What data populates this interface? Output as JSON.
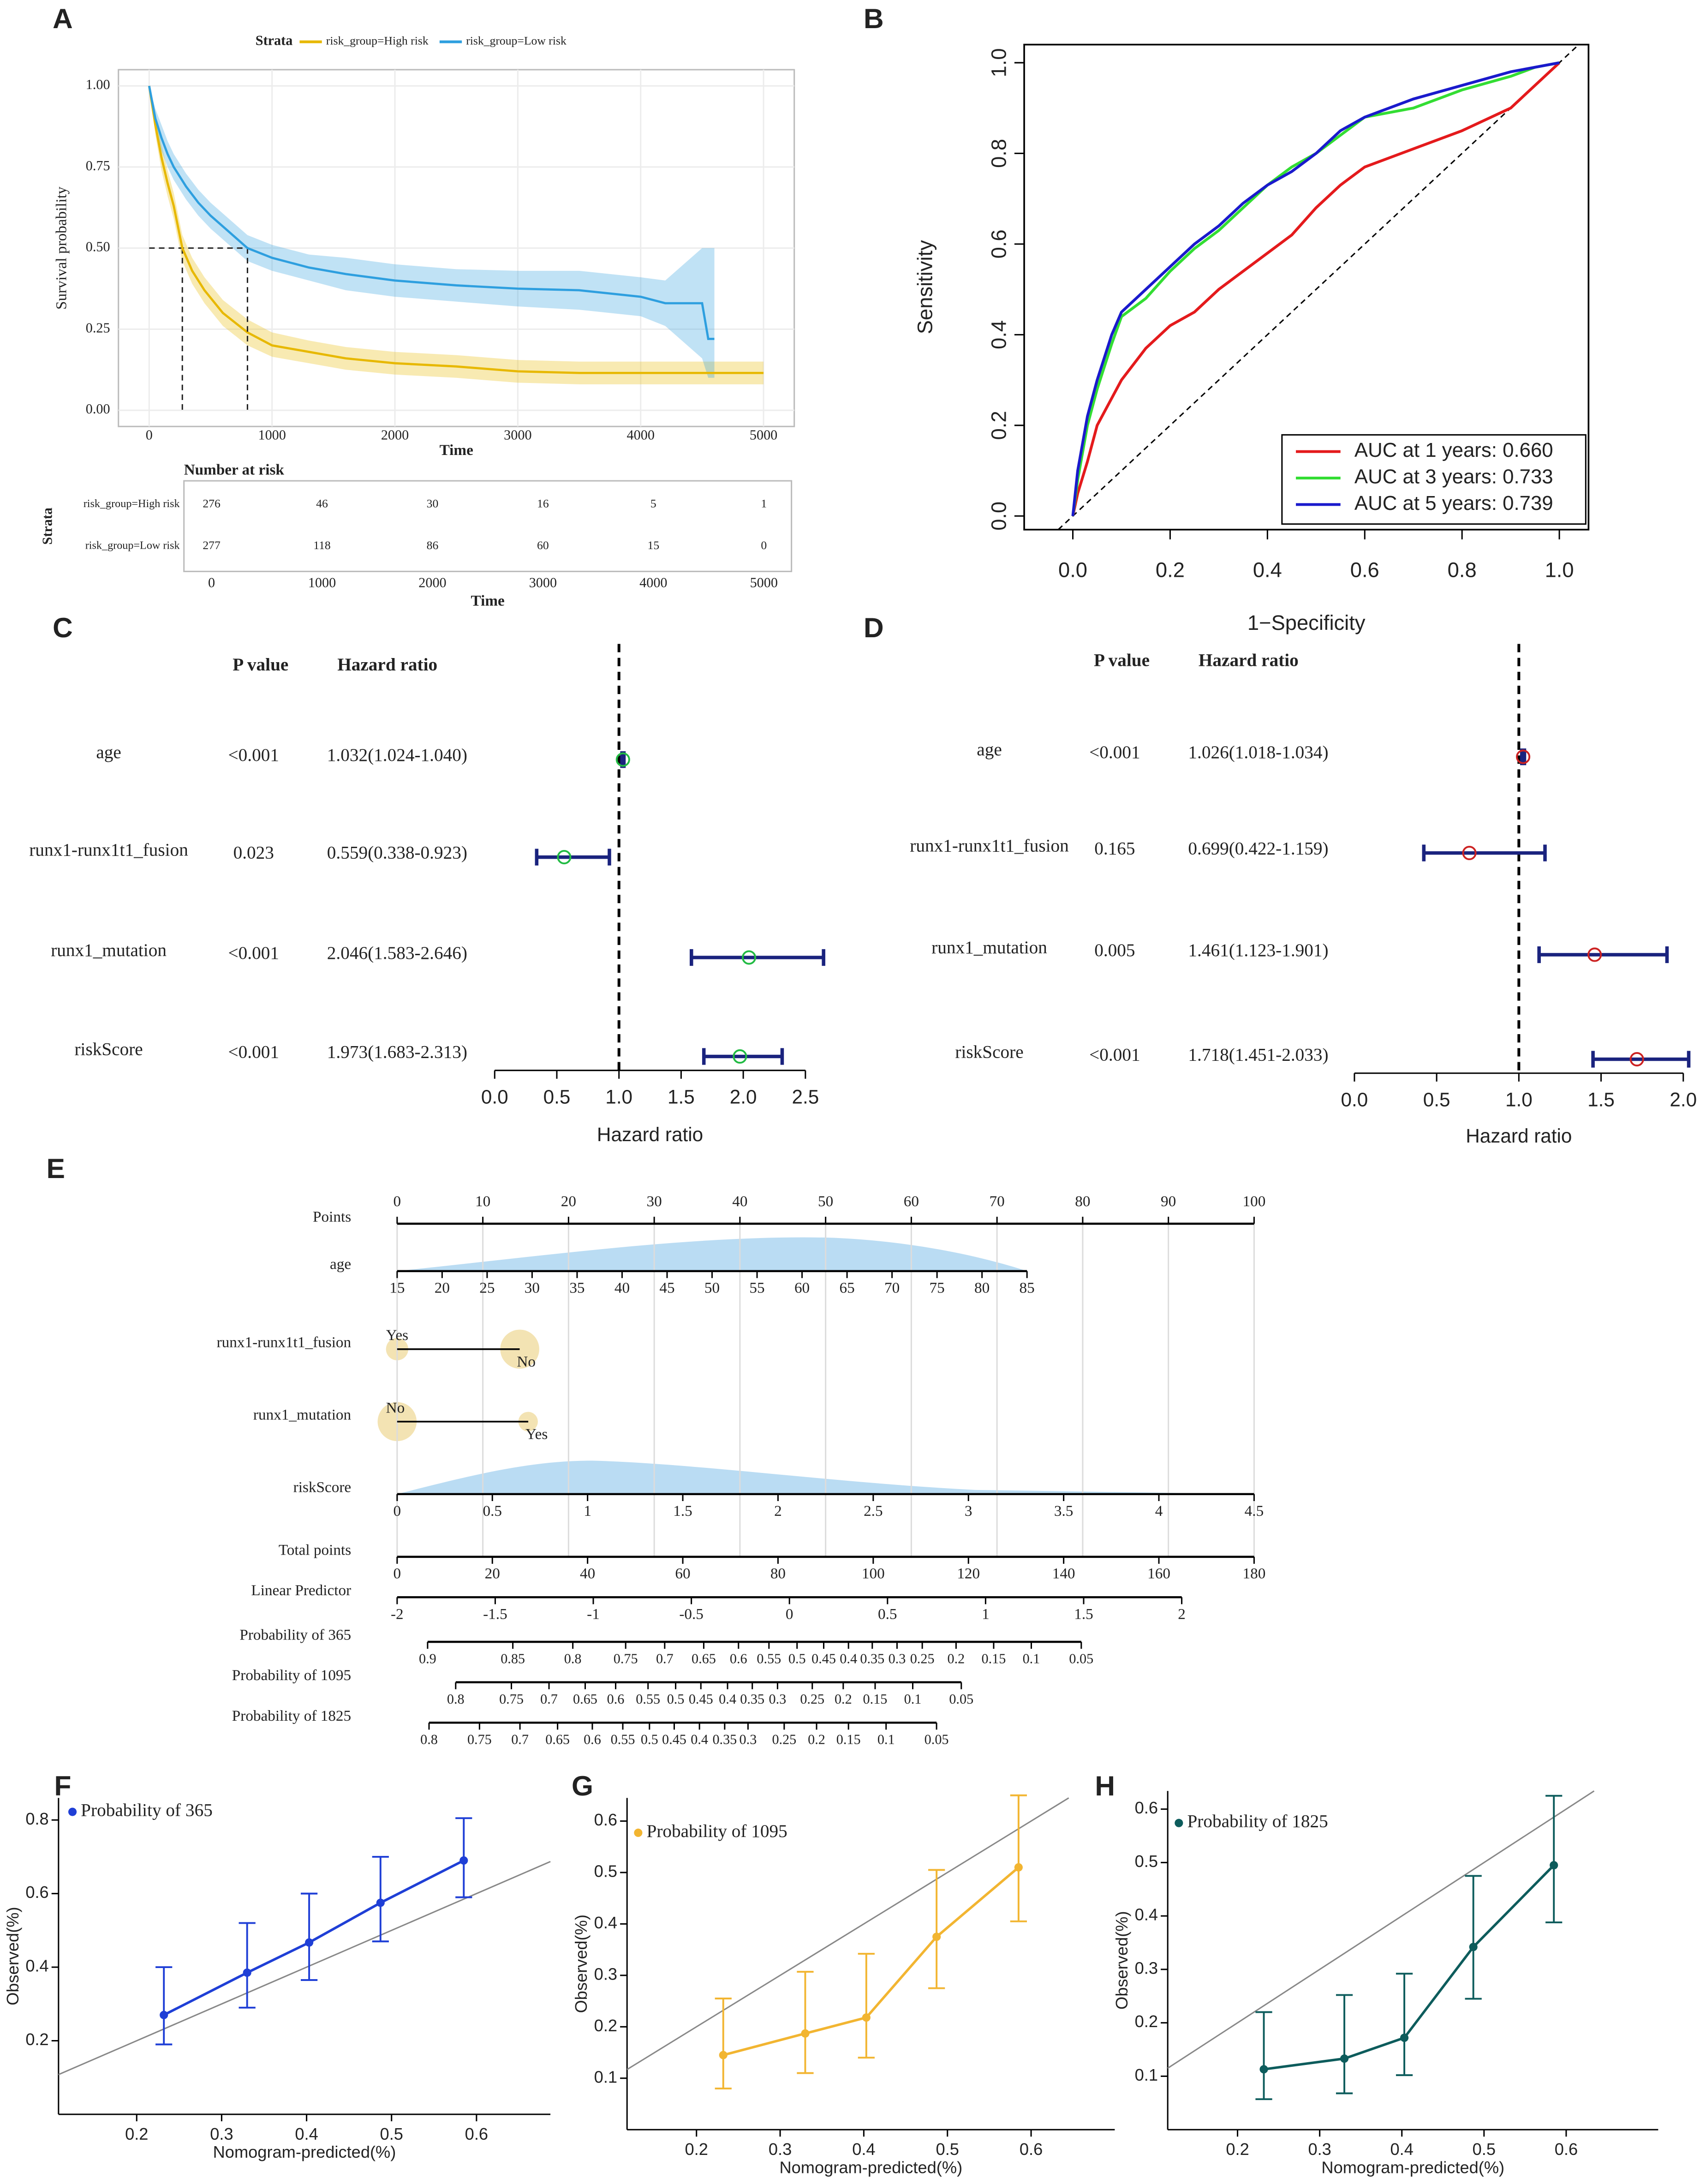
{
  "chart_data": [
    {
      "panel": "A",
      "type": "survival",
      "legend_title": "Strata",
      "xlabel": "Time",
      "ylabel": "Survival probability",
      "xlim": [
        -250,
        5250
      ],
      "ylim": [
        -0.05,
        1.05
      ],
      "xticks": [
        0,
        1000,
        2000,
        3000,
        4000,
        5000
      ],
      "yticks": [
        {
          "value": 0,
          "label": "0.00"
        },
        {
          "value": 0.25,
          "label": "0.25"
        },
        {
          "value": 0.5,
          "label": "0.50"
        },
        {
          "value": 0.75,
          "label": "0.75"
        },
        {
          "value": 1,
          "label": "1.00"
        }
      ],
      "grid": true,
      "median_survival": 0.5,
      "series": [
        {
          "name": "risk_group=High risk",
          "color": "#e7b800",
          "median": 270,
          "x": [
            0,
            50,
            100,
            150,
            200,
            270,
            350,
            450,
            600,
            800,
            1000,
            1300,
            1600,
            2000,
            2500,
            3000,
            3500,
            4000,
            4500,
            5000
          ],
          "values": [
            1,
            0.88,
            0.78,
            0.7,
            0.63,
            0.5,
            0.43,
            0.37,
            0.3,
            0.24,
            0.2,
            0.18,
            0.16,
            0.145,
            0.135,
            0.12,
            0.115,
            0.115,
            0.115,
            0.115
          ],
          "lower": [
            1,
            0.85,
            0.74,
            0.66,
            0.59,
            0.46,
            0.39,
            0.33,
            0.26,
            0.2,
            0.165,
            0.145,
            0.125,
            0.11,
            0.1,
            0.085,
            0.08,
            0.08,
            0.08,
            0.08
          ],
          "upper": [
            1,
            0.91,
            0.82,
            0.74,
            0.67,
            0.54,
            0.47,
            0.41,
            0.34,
            0.28,
            0.24,
            0.215,
            0.195,
            0.18,
            0.17,
            0.155,
            0.15,
            0.15,
            0.15,
            0.15
          ]
        },
        {
          "name": "risk_group=Low risk",
          "color": "#2e9fdf",
          "median": 800,
          "x": [
            0,
            50,
            100,
            150,
            200,
            300,
            400,
            500,
            650,
            800,
            1000,
            1300,
            1600,
            2000,
            2500,
            3000,
            3500,
            4000,
            4200,
            4500,
            4550,
            4600
          ],
          "values": [
            1,
            0.9,
            0.84,
            0.79,
            0.75,
            0.69,
            0.64,
            0.6,
            0.55,
            0.5,
            0.47,
            0.44,
            0.42,
            0.4,
            0.385,
            0.375,
            0.37,
            0.35,
            0.33,
            0.33,
            0.22,
            0.22
          ],
          "lower": [
            1,
            0.87,
            0.8,
            0.75,
            0.71,
            0.65,
            0.6,
            0.56,
            0.51,
            0.46,
            0.43,
            0.4,
            0.37,
            0.35,
            0.335,
            0.32,
            0.31,
            0.29,
            0.26,
            0.16,
            0.1,
            0.1
          ],
          "upper": [
            1,
            0.93,
            0.88,
            0.83,
            0.79,
            0.73,
            0.68,
            0.64,
            0.59,
            0.54,
            0.51,
            0.48,
            0.47,
            0.45,
            0.435,
            0.43,
            0.43,
            0.41,
            0.4,
            0.5,
            0.5,
            0.5
          ]
        }
      ]
    },
    {
      "type": "risk_table",
      "title": "Number at risk",
      "ylabel": "Strata",
      "xlabel": "Time",
      "xlim": [
        -250,
        5250
      ],
      "xticks": [
        0,
        1000,
        2000,
        3000,
        4000,
        5000
      ],
      "rows": [
        {
          "name": "risk_group=High risk",
          "color": "#e7b800",
          "values": [
            276,
            46,
            30,
            16,
            5,
            1
          ]
        },
        {
          "name": "risk_group=Low risk",
          "color": "#2e9fdf",
          "values": [
            277,
            118,
            86,
            60,
            15,
            0
          ]
        }
      ]
    },
    {
      "panel": "B",
      "type": "roc",
      "xlabel": "1−Specificity",
      "ylabel": "Sensitivity",
      "xlim": [
        -0.1,
        1.06
      ],
      "ylim": [
        -0.03,
        1.04
      ],
      "xticks": [
        {
          "value": 0,
          "label": "0.0"
        },
        0.2,
        0.4,
        0.6,
        0.8,
        {
          "value": 1,
          "label": "1.0"
        }
      ],
      "yticks": [
        {
          "value": 0,
          "label": "0.0"
        },
        0.2,
        0.4,
        0.6,
        0.8,
        {
          "value": 1,
          "label": "1.0"
        }
      ],
      "x": [
        0,
        0.01,
        0.03,
        0.05,
        0.08,
        0.1,
        0.15,
        0.2,
        0.25,
        0.3,
        0.35,
        0.4,
        0.45,
        0.5,
        0.55,
        0.6,
        0.7,
        0.8,
        0.9,
        0.95,
        1
      ],
      "series": [
        {
          "name": "AUC at 1 years: 0.660",
          "color": "#e41a1c",
          "values": [
            0,
            0.05,
            0.12,
            0.2,
            0.26,
            0.3,
            0.37,
            0.42,
            0.45,
            0.5,
            0.54,
            0.58,
            0.62,
            0.68,
            0.73,
            0.77,
            0.81,
            0.85,
            0.9,
            0.95,
            1
          ]
        },
        {
          "name": "AUC at 3 years: 0.733",
          "color": "#33dd33",
          "values": [
            0,
            0.08,
            0.2,
            0.28,
            0.38,
            0.44,
            0.48,
            0.54,
            0.59,
            0.63,
            0.68,
            0.73,
            0.77,
            0.8,
            0.84,
            0.88,
            0.9,
            0.94,
            0.97,
            0.99,
            1
          ]
        },
        {
          "name": "AUC at 5 years: 0.739",
          "color": "#1a1acc",
          "values": [
            0,
            0.1,
            0.22,
            0.3,
            0.4,
            0.45,
            0.5,
            0.55,
            0.6,
            0.64,
            0.69,
            0.73,
            0.76,
            0.8,
            0.85,
            0.88,
            0.92,
            0.95,
            0.98,
            0.99,
            1
          ]
        }
      ]
    },
    {
      "panel": "C",
      "type": "forest",
      "p_header": "P value",
      "hr_header": "Hazard ratio",
      "xlabel": "Hazard ratio",
      "ref": 1,
      "point_color": "#22bb44",
      "bar_color": "#1a237e",
      "xlim": [
        0,
        2.5
      ],
      "xticks": [
        {
          "value": 0,
          "label": "0.0"
        },
        0.5,
        {
          "value": 1,
          "label": "1.0"
        },
        1.5,
        {
          "value": 2,
          "label": "2.0"
        },
        2.5
      ],
      "categories": [
        "age",
        "runx1-runx1t1_fusion",
        "runx1_mutation",
        "riskScore"
      ],
      "p_values": [
        "<0.001",
        "0.023",
        "<0.001",
        "<0.001"
      ],
      "hr_labels": [
        "1.032(1.024-1.040)",
        "0.559(0.338-0.923)",
        "2.046(1.583-2.646)",
        "1.973(1.683-2.313)"
      ],
      "values": [
        1.032,
        0.559,
        2.046,
        1.973
      ],
      "lower": [
        1.024,
        0.338,
        1.583,
        1.683
      ],
      "upper": [
        1.04,
        0.923,
        2.646,
        2.313
      ]
    },
    {
      "panel": "D",
      "type": "forest",
      "p_header": "P value",
      "hr_header": "Hazard ratio",
      "xlabel": "Hazard ratio",
      "ref": 1,
      "point_color": "#cc2222",
      "bar_color": "#1a237e",
      "xlim": [
        0,
        2
      ],
      "xticks": [
        {
          "value": 0,
          "label": "0.0"
        },
        0.5,
        {
          "value": 1,
          "label": "1.0"
        },
        1.5,
        {
          "value": 2,
          "label": "2.0"
        }
      ],
      "categories": [
        "age",
        "runx1-runx1t1_fusion",
        "runx1_mutation",
        "riskScore"
      ],
      "p_values": [
        "<0.001",
        "0.165",
        "0.005",
        "<0.001"
      ],
      "hr_labels": [
        "1.026(1.018-1.034)",
        "0.699(0.422-1.159)",
        "1.461(1.123-1.901)",
        "1.718(1.451-2.033)"
      ],
      "values": [
        1.026,
        0.699,
        1.461,
        1.718
      ],
      "lower": [
        1.018,
        0.422,
        1.123,
        1.451
      ],
      "upper": [
        1.034,
        1.159,
        1.901,
        2.033
      ]
    },
    {
      "panel": "E",
      "type": "nomogram",
      "rows": [
        {
          "name": "Points",
          "scale": "points",
          "ticks": [
            0,
            10,
            20,
            30,
            40,
            50,
            60,
            70,
            80,
            90,
            100
          ]
        },
        {
          "name": "age",
          "scale": "points",
          "range": [
            0,
            73.5
          ],
          "ticks": [
            15,
            20,
            25,
            30,
            35,
            40,
            45,
            50,
            55,
            60,
            65,
            70,
            75,
            80,
            85
          ]
        },
        {
          "name": "runx1-runx1t1_fusion",
          "scale": "points",
          "range": [
            0,
            14.3
          ],
          "ticks": [
            "Yes",
            "No"
          ]
        },
        {
          "name": "runx1_mutation",
          "scale": "points",
          "range": [
            0,
            15.3
          ],
          "ticks": [
            "No",
            "Yes"
          ]
        },
        {
          "name": "riskScore",
          "scale": "points",
          "range": [
            0,
            100
          ],
          "ticks": [
            0,
            0.5,
            1,
            1.5,
            2,
            2.5,
            3,
            3.5,
            4,
            4.5
          ]
        },
        {
          "name": "Total points",
          "scale": "total",
          "ticks": [
            0,
            20,
            40,
            60,
            80,
            100,
            120,
            140,
            160,
            180
          ]
        },
        {
          "name": "Linear Predictor",
          "scale": "total",
          "range": [
            0,
            164.8
          ],
          "ticks": [
            -2,
            -1.5,
            -1,
            -0.5,
            0,
            0.5,
            1,
            1.5,
            2
          ]
        },
        {
          "name": "Probability of 365",
          "scale": "total",
          "ticks": [
            0.9,
            0.85,
            0.8,
            0.75,
            0.7,
            0.65,
            0.6,
            0.55,
            0.5,
            0.45,
            0.4,
            0.35,
            0.3,
            0.25,
            0.2,
            0.15,
            0.1,
            0.05
          ],
          "positions": [
            6.4,
            24.3,
            36.9,
            48,
            56.2,
            64.4,
            71.7,
            78.1,
            84,
            89.6,
            94.8,
            99.8,
            105,
            110.3,
            117.4,
            125.3,
            133.2,
            143.7
          ]
        },
        {
          "name": "Probability of 1095",
          "scale": "total",
          "ticks": [
            0.8,
            0.75,
            0.7,
            0.65,
            0.6,
            0.55,
            0.5,
            0.45,
            0.4,
            0.35,
            0.3,
            0.25,
            0.2,
            0.15,
            0.1,
            0.05
          ],
          "positions": [
            12.3,
            24,
            31.9,
            39.5,
            45.9,
            52.7,
            58.5,
            63.8,
            69.4,
            74.6,
            79.9,
            87.2,
            93.7,
            100.4,
            108.3,
            118.5
          ]
        },
        {
          "name": "Probability of 1825",
          "scale": "total",
          "ticks": [
            0.8,
            0.75,
            0.7,
            0.65,
            0.6,
            0.55,
            0.5,
            0.45,
            0.4,
            0.35,
            0.3,
            0.25,
            0.2,
            0.15,
            0.1,
            0.05
          ],
          "positions": [
            6.7,
            17.3,
            25.8,
            33.7,
            41,
            47.4,
            53,
            58.2,
            63.5,
            68.8,
            73.7,
            81.3,
            88.1,
            94.8,
            102.7,
            113.3
          ]
        }
      ]
    },
    {
      "panel": "F",
      "type": "calibration",
      "xlabel": "Nomogram-predicted(%)",
      "ylabel": "Observed(%)",
      "xlim": [
        0.108,
        0.687
      ],
      "ylim": [
        0,
        0.86
      ],
      "xticks": [
        0.2,
        0.3,
        0.4,
        0.5,
        0.6
      ],
      "yticks": [
        0.2,
        0.4,
        0.6,
        0.8
      ],
      "series": [
        {
          "name": "Probability of 365",
          "color": "#1f3fd6",
          "x": [
            0.232,
            0.33,
            0.403,
            0.487,
            0.585
          ],
          "values": [
            0.27,
            0.385,
            0.467,
            0.575,
            0.69
          ],
          "lower": [
            0.19,
            0.29,
            0.365,
            0.47,
            0.59
          ],
          "upper": [
            0.4,
            0.52,
            0.6,
            0.7,
            0.805
          ]
        }
      ]
    },
    {
      "panel": "G",
      "type": "calibration",
      "xlabel": "Nomogram-predicted(%)",
      "ylabel": "Observed(%)",
      "xlim": [
        0.117,
        0.7
      ],
      "ylim": [
        0,
        0.645
      ],
      "xticks": [
        0.2,
        0.3,
        0.4,
        0.5,
        0.6
      ],
      "yticks": [
        0.1,
        0.2,
        0.3,
        0.4,
        0.5,
        0.6
      ],
      "series": [
        {
          "name": "Probability of 1095",
          "color": "#f2b531",
          "x": [
            0.232,
            0.33,
            0.403,
            0.487,
            0.585
          ],
          "values": [
            0.145,
            0.187,
            0.218,
            0.375,
            0.51
          ],
          "lower": [
            0.08,
            0.11,
            0.14,
            0.275,
            0.405
          ],
          "upper": [
            0.255,
            0.307,
            0.342,
            0.505,
            0.65
          ]
        }
      ]
    },
    {
      "panel": "H",
      "type": "calibration",
      "xlabel": "Nomogram-predicted(%)",
      "ylabel": "Observed(%)",
      "xlim": [
        0.115,
        0.712
      ],
      "ylim": [
        0,
        0.634
      ],
      "xticks": [
        0.2,
        0.3,
        0.4,
        0.5,
        0.6
      ],
      "yticks": [
        0.1,
        0.2,
        0.3,
        0.4,
        0.5,
        0.6
      ],
      "series": [
        {
          "name": "Probability of 1825",
          "color": "#0d5c5c",
          "x": [
            0.232,
            0.33,
            0.403,
            0.487,
            0.585
          ],
          "values": [
            0.113,
            0.133,
            0.172,
            0.342,
            0.495
          ],
          "lower": [
            0.057,
            0.068,
            0.102,
            0.245,
            0.388
          ],
          "upper": [
            0.22,
            0.252,
            0.292,
            0.475,
            0.625
          ]
        }
      ]
    }
  ]
}
